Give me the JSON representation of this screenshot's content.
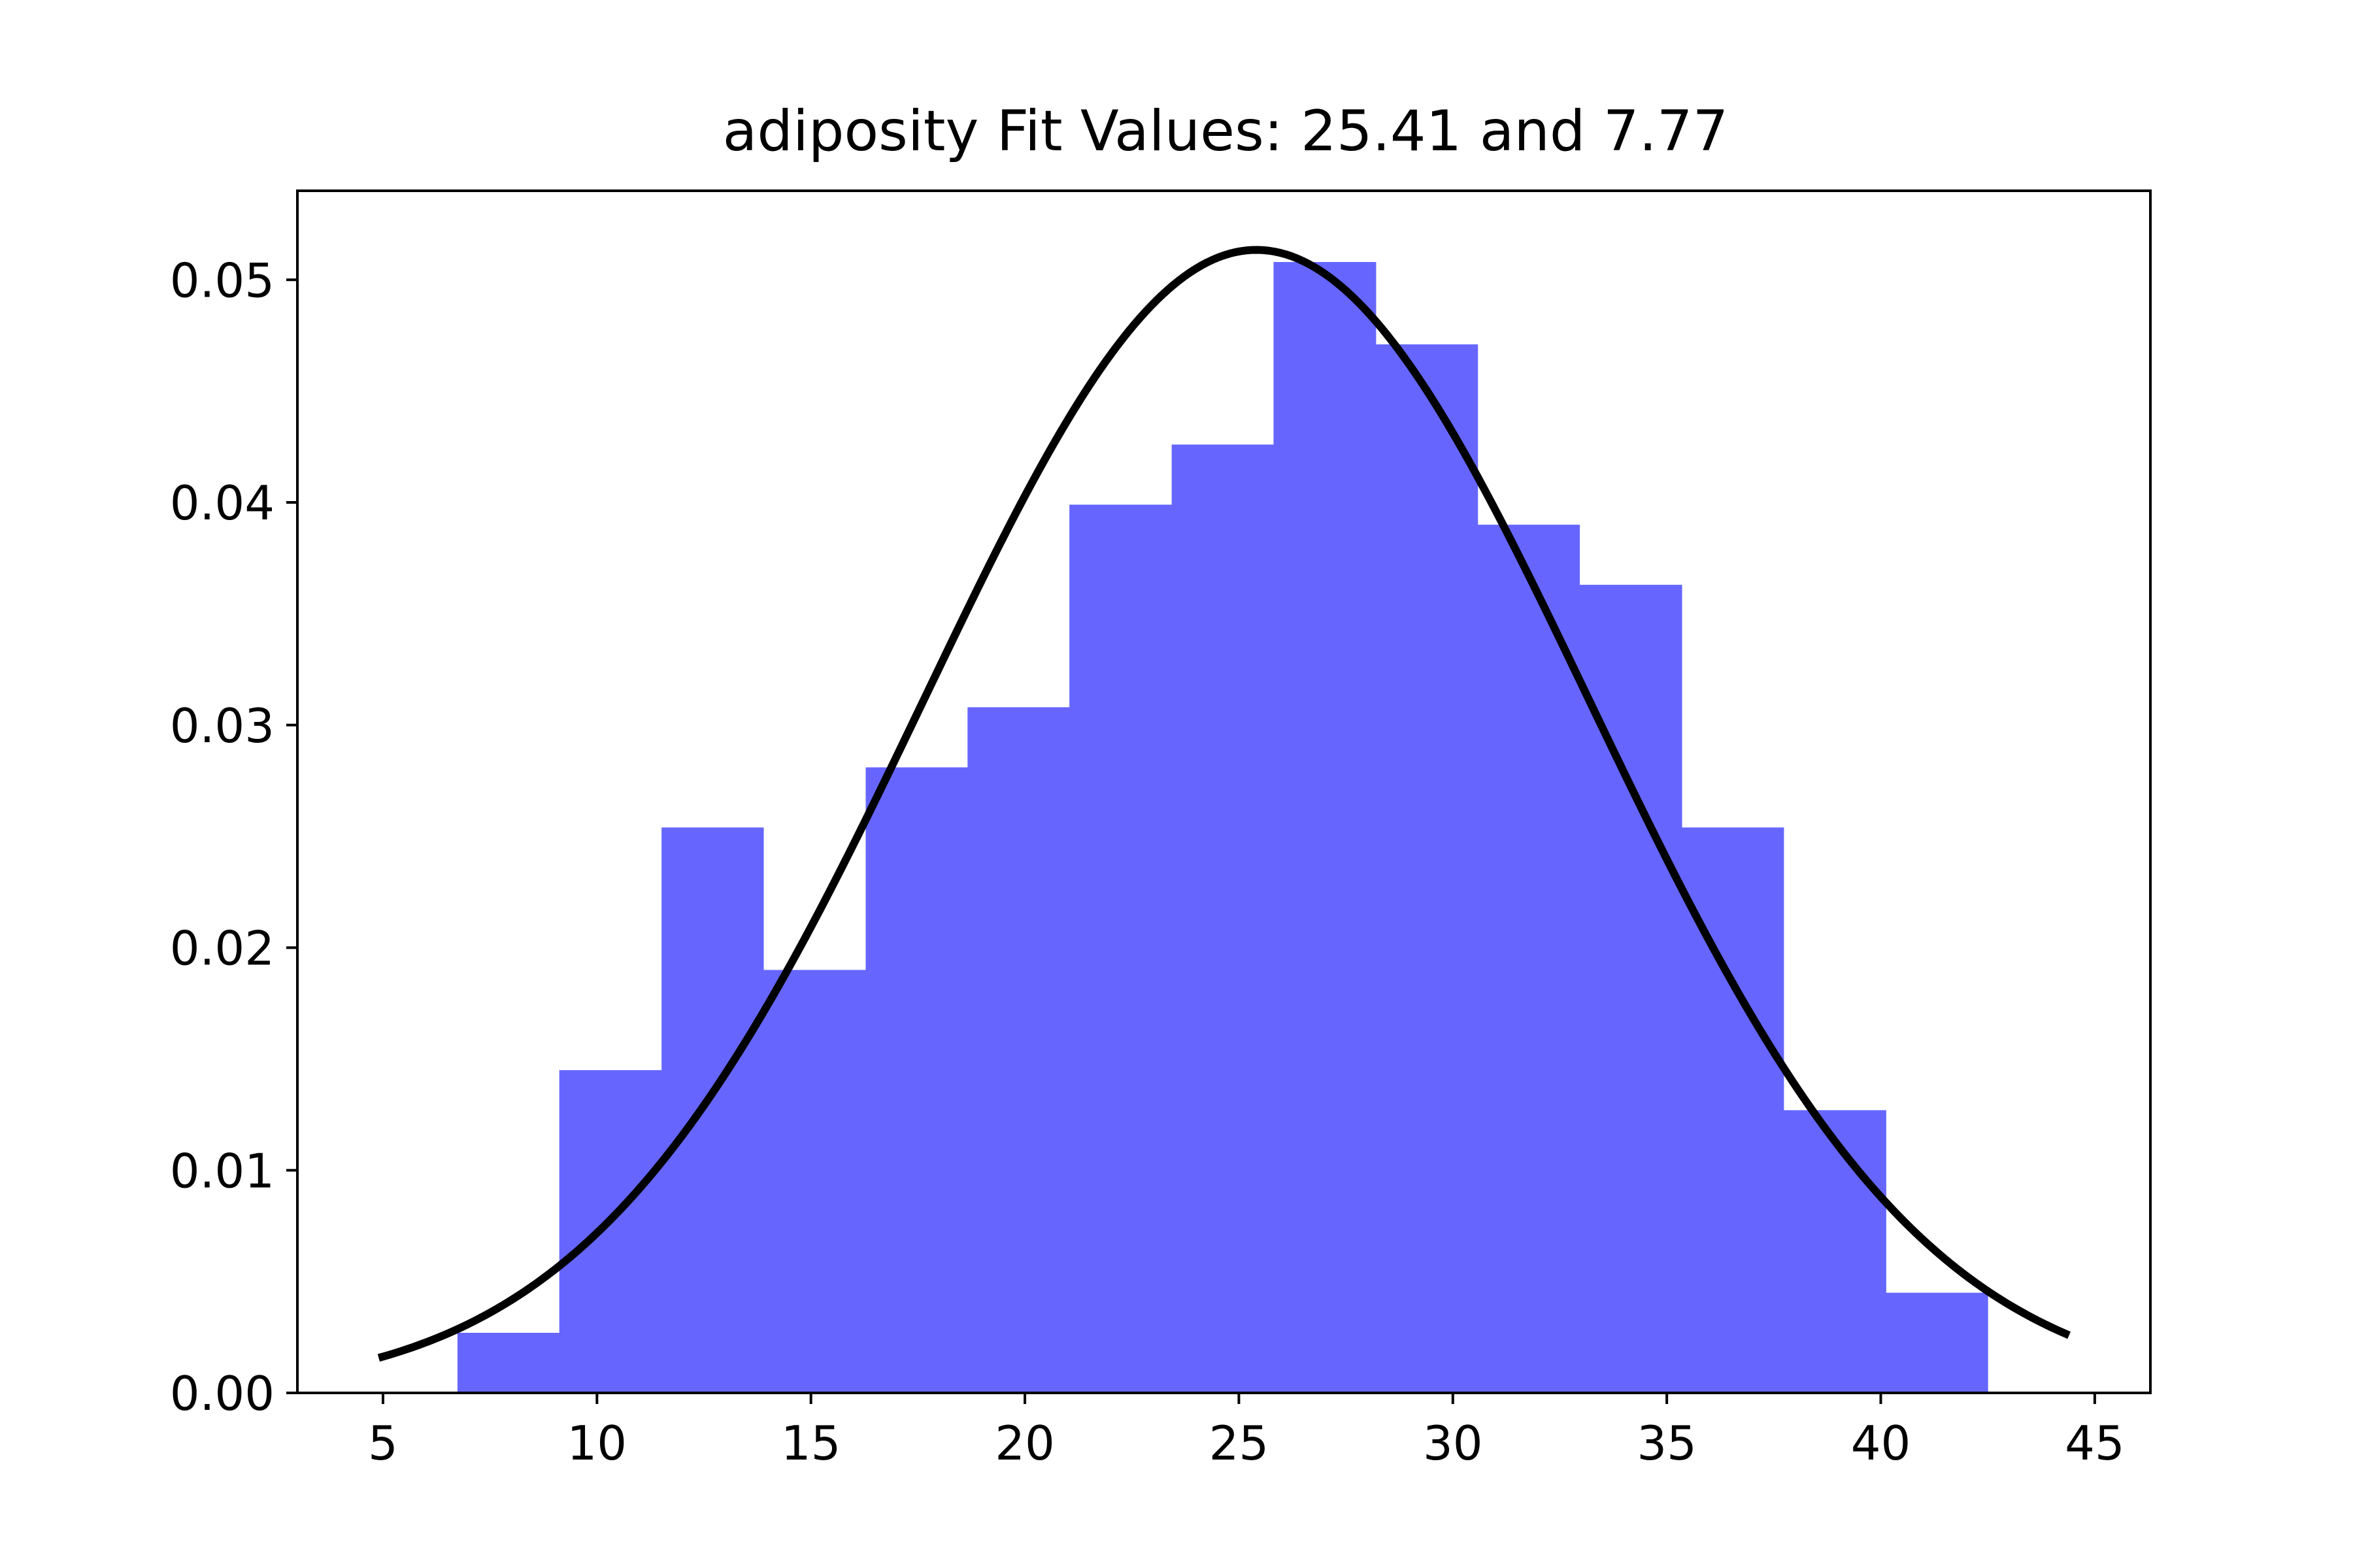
{
  "chart_data": {
    "type": "bar",
    "title": "adiposity Fit Values: 25.41 and 7.77",
    "xlabel": "",
    "ylabel": "",
    "xlim": [
      3.0,
      46.3
    ],
    "ylim": [
      0,
      0.054
    ],
    "grid": false,
    "x_ticks": [
      5,
      10,
      15,
      20,
      25,
      30,
      35,
      40,
      45
    ],
    "x_tick_labels": [
      "5",
      "10",
      "15",
      "20",
      "25",
      "30",
      "35",
      "40",
      "45"
    ],
    "y_ticks": [
      0.0,
      0.01,
      0.02,
      0.03,
      0.04,
      0.05
    ],
    "y_tick_labels": [
      "0.00",
      "0.01",
      "0.02",
      "0.03",
      "0.04",
      "0.05"
    ],
    "histogram": {
      "color": "#6666ff",
      "bin_edges": [
        6.74,
        9.12,
        11.51,
        13.89,
        16.28,
        18.66,
        21.04,
        23.43,
        25.81,
        28.2,
        30.58,
        32.96,
        35.35,
        37.73,
        40.12,
        42.5
      ],
      "densities": [
        0.0027,
        0.0145,
        0.0254,
        0.019,
        0.0281,
        0.0308,
        0.0399,
        0.0426,
        0.0508,
        0.0471,
        0.039,
        0.0363,
        0.0254,
        0.0127,
        0.0045
      ]
    },
    "fit_curve": {
      "type": "normal_pdf",
      "mean": 25.41,
      "std": 7.77,
      "x_range": [
        4.9,
        44.4
      ],
      "color": "#000000"
    }
  }
}
